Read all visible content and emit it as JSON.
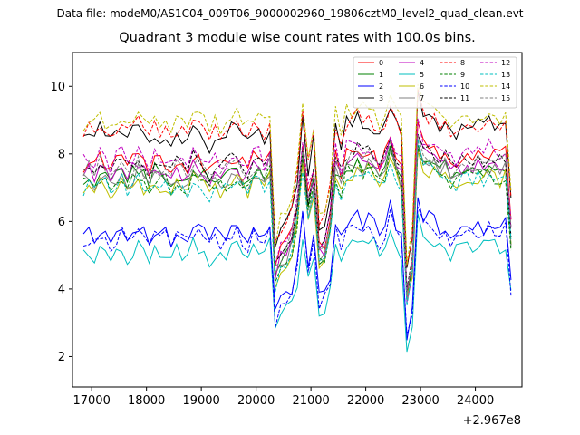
{
  "figure": {
    "suptitle": "Data file: modeM0/AS1C04_009T06_9000002960_19806cztM0_level2_quad_clean.evt"
  },
  "chart_data": {
    "type": "line",
    "title": "Quadrant 3 module wise count rates with 100.0s bins.",
    "xlabel": "",
    "ylabel": "",
    "offset_text": "+2.967e8",
    "xlim": [
      16650,
      24850
    ],
    "ylim": [
      1.1,
      11.0
    ],
    "xticks": [
      17000,
      18000,
      19000,
      20000,
      21000,
      22000,
      23000,
      24000
    ],
    "yticks": [
      2,
      4,
      6,
      8,
      10
    ],
    "legend_position": "upper right",
    "x_start": 16850,
    "x_step": 100,
    "shared_profile": [
      0.0,
      0.15,
      -0.1,
      0.2,
      0.05,
      -0.2,
      0.1,
      0.25,
      -0.05,
      0.1,
      0.3,
      0.0,
      -0.15,
      0.2,
      0.05,
      0.1,
      -0.2,
      0.15,
      0.0,
      -0.1,
      0.3,
      0.2,
      0.0,
      -0.25,
      0.1,
      -0.1,
      0.05,
      0.2,
      0.25,
      0.0,
      -0.1,
      0.15,
      0.2,
      -0.05,
      0.35,
      -4.0,
      -3.3,
      -3.1,
      -2.7,
      -1.5,
      0.7,
      -1.2,
      -0.1,
      -3.2,
      -3.0,
      -2.0,
      0.3,
      -0.2,
      0.4,
      0.4,
      0.6,
      0.4,
      0.5,
      0.3,
      0.0,
      0.3,
      0.9,
      0.3,
      0.0,
      -4.8,
      -4.0,
      1.0,
      0.4,
      0.3,
      0.2,
      0.0,
      0.1,
      -0.2,
      -0.1,
      0.0,
      0.1,
      -0.1,
      0.1,
      0.0,
      0.2,
      0.05,
      -0.05,
      0.15,
      -2.7
    ],
    "series": [
      {
        "name": "0",
        "color": "#ff0000",
        "dash": false,
        "level": 7.7
      },
      {
        "name": "1",
        "color": "#008000",
        "dash": false,
        "level": 7.3
      },
      {
        "name": "2",
        "color": "#0000ff",
        "dash": false,
        "level": 5.6
      },
      {
        "name": "3",
        "color": "#000000",
        "dash": false,
        "level": 8.5
      },
      {
        "name": "4",
        "color": "#bf00bf",
        "dash": false,
        "level": 7.4
      },
      {
        "name": "5",
        "color": "#00bfbf",
        "dash": false,
        "level": 5.0
      },
      {
        "name": "6",
        "color": "#bfbf00",
        "dash": false,
        "level": 7.0
      },
      {
        "name": "7",
        "color": "#808080",
        "dash": false,
        "level": 7.2
      },
      {
        "name": "8",
        "color": "#ff0000",
        "dash": true,
        "level": 8.6
      },
      {
        "name": "9",
        "color": "#008000",
        "dash": true,
        "level": 7.1
      },
      {
        "name": "10",
        "color": "#0000ff",
        "dash": true,
        "level": 5.4
      },
      {
        "name": "11",
        "color": "#000000",
        "dash": true,
        "level": 7.6
      },
      {
        "name": "12",
        "color": "#bf00bf",
        "dash": true,
        "level": 7.8
      },
      {
        "name": "13",
        "color": "#00bfbf",
        "dash": true,
        "level": 7.0
      },
      {
        "name": "14",
        "color": "#bfbf00",
        "dash": true,
        "level": 8.9
      },
      {
        "name": "15",
        "color": "#808080",
        "dash": true,
        "level": 7.5
      }
    ]
  }
}
